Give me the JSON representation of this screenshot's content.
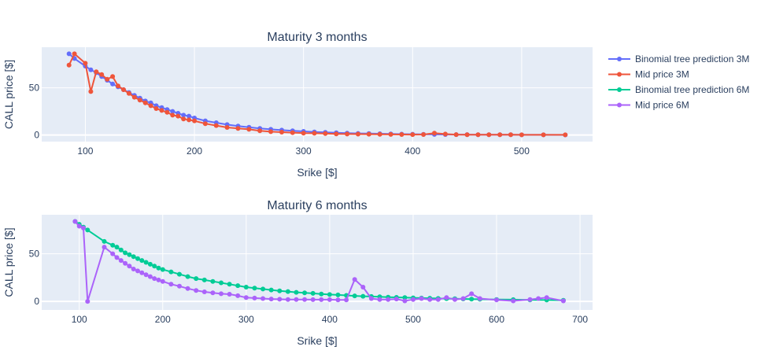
{
  "colors": {
    "plot_bg": "#e5ecf6",
    "grid": "#ffffff",
    "text": "#2a3f5f"
  },
  "legend": [
    {
      "name": "Binomial tree prediction 3M",
      "color": "#636efa"
    },
    {
      "name": "Mid price 3M",
      "color": "#ef553b"
    },
    {
      "name": "Binomial tree prediction 6M",
      "color": "#00cc96"
    },
    {
      "name": "Mid price 6M",
      "color": "#ab63fa"
    }
  ],
  "chart_data": [
    {
      "type": "line",
      "title": "Maturity 3 months",
      "xlabel": "Srike [$]",
      "ylabel": "CALL price [$]",
      "xlim": [
        60,
        565
      ],
      "ylim": [
        -7,
        93
      ],
      "xticks": [
        100,
        200,
        300,
        400,
        500
      ],
      "yticks": [
        0,
        50
      ],
      "grid": true,
      "series": [
        {
          "name": "Binomial tree prediction 3M",
          "color": "#636efa",
          "x": [
            85,
            90,
            100,
            105,
            110,
            115,
            120,
            125,
            130,
            135,
            140,
            145,
            150,
            155,
            160,
            165,
            170,
            175,
            180,
            185,
            190,
            195,
            200,
            210,
            220,
            230,
            240,
            250,
            260,
            270,
            280,
            290,
            300,
            310,
            320,
            330,
            340,
            350,
            360,
            370,
            380,
            390,
            400,
            410,
            420,
            430,
            440,
            450,
            460,
            470,
            480,
            490,
            500,
            520,
            540
          ],
          "y": [
            86,
            81,
            73,
            69,
            66,
            62,
            58,
            54,
            51,
            48,
            45,
            42,
            39,
            36,
            34,
            31,
            29,
            27,
            25,
            23,
            21,
            20,
            18,
            15,
            13,
            11,
            9.5,
            8.2,
            7,
            6,
            5.2,
            4.4,
            3.8,
            3.2,
            2.8,
            2.4,
            2,
            1.7,
            1.5,
            1.3,
            1.1,
            0.9,
            0.8,
            0.7,
            0.6,
            0.5,
            0.45,
            0.4,
            0.35,
            0.3,
            0.25,
            0.22,
            0.2,
            0.15,
            0.1
          ]
        },
        {
          "name": "Mid price 3M",
          "color": "#ef553b",
          "x": [
            85,
            90,
            100,
            105,
            110,
            115,
            120,
            125,
            130,
            135,
            140,
            145,
            150,
            155,
            160,
            165,
            170,
            175,
            180,
            185,
            190,
            195,
            200,
            210,
            220,
            230,
            240,
            250,
            260,
            270,
            280,
            290,
            300,
            310,
            320,
            330,
            340,
            350,
            360,
            370,
            380,
            390,
            400,
            410,
            420,
            430,
            440,
            450,
            460,
            470,
            480,
            490,
            500,
            520,
            540
          ],
          "y": [
            74,
            86,
            76,
            46,
            67,
            64,
            59,
            62,
            52,
            48,
            44,
            40,
            37,
            34,
            31,
            28,
            26,
            24,
            21,
            20,
            17,
            16,
            15,
            12,
            10,
            8,
            7,
            6,
            4.5,
            3.5,
            3,
            2.5,
            2,
            1.8,
            1.5,
            1.2,
            1,
            0.9,
            0.8,
            0.7,
            0.6,
            0.5,
            0.4,
            0.5,
            2,
            1,
            0.4,
            0.3,
            0.3,
            0.3,
            0.3,
            0.3,
            0.2,
            0.2,
            0.2
          ]
        }
      ]
    },
    {
      "type": "line",
      "title": "Maturity 6 months",
      "xlabel": "Srike [$]",
      "ylabel": "CALL price [$]",
      "xlim": [
        55,
        715
      ],
      "ylim": [
        -9,
        91
      ],
      "xticks": [
        100,
        200,
        300,
        400,
        500,
        600,
        700
      ],
      "yticks": [
        0,
        50
      ],
      "grid": true,
      "series": [
        {
          "name": "Binomial tree prediction 6M",
          "color": "#00cc96",
          "x": [
            95,
            100,
            105,
            110,
            130,
            140,
            145,
            150,
            155,
            160,
            165,
            170,
            175,
            180,
            185,
            190,
            195,
            200,
            210,
            220,
            230,
            240,
            250,
            260,
            270,
            280,
            290,
            300,
            310,
            320,
            330,
            340,
            350,
            360,
            370,
            380,
            390,
            400,
            410,
            420,
            430,
            440,
            450,
            460,
            470,
            480,
            490,
            500,
            510,
            520,
            530,
            540,
            550,
            560,
            570,
            580,
            600,
            620,
            640,
            660,
            680
          ],
          "y": [
            84,
            81,
            78,
            75,
            63,
            59,
            57,
            54,
            51,
            49,
            47,
            45,
            43,
            41,
            39,
            37,
            35,
            33.5,
            31,
            28.5,
            26,
            24,
            22.5,
            21,
            19.5,
            18,
            16.5,
            15,
            14,
            13,
            12,
            11,
            10.3,
            9.5,
            9,
            8.4,
            7.8,
            7.2,
            6.8,
            6.3,
            5.8,
            5.4,
            5.1,
            4.8,
            4.5,
            4.2,
            4,
            3.7,
            3.5,
            3.3,
            3.1,
            2.9,
            2.7,
            2.6,
            2.4,
            2.2,
            2,
            1.8,
            1.6,
            1.4,
            1.2
          ]
        },
        {
          "name": "Mid price 6M",
          "color": "#ab63fa",
          "x": [
            95,
            100,
            105,
            110,
            130,
            140,
            145,
            150,
            155,
            160,
            165,
            170,
            175,
            180,
            185,
            190,
            195,
            200,
            210,
            220,
            230,
            240,
            250,
            260,
            270,
            280,
            290,
            300,
            310,
            320,
            330,
            340,
            350,
            360,
            370,
            380,
            390,
            400,
            410,
            420,
            430,
            440,
            450,
            460,
            470,
            480,
            490,
            500,
            510,
            520,
            530,
            540,
            550,
            560,
            570,
            580,
            600,
            620,
            640,
            650,
            660,
            680
          ],
          "y": [
            84,
            79,
            77,
            0,
            57,
            50,
            46,
            43,
            40,
            37,
            34,
            32,
            30,
            28,
            26,
            24,
            22.5,
            21,
            18,
            16,
            13.5,
            11.5,
            10,
            9,
            8,
            7.5,
            6,
            4,
            3.5,
            3,
            2.5,
            2.2,
            2,
            2,
            2,
            1.8,
            1.8,
            1.8,
            1.6,
            1.6,
            23,
            15,
            3,
            2,
            2,
            2.5,
            0.5,
            2,
            3,
            2,
            2,
            4,
            2,
            3,
            8,
            3,
            1.5,
            0.5,
            2,
            3,
            4,
            0.5
          ]
        }
      ]
    }
  ]
}
